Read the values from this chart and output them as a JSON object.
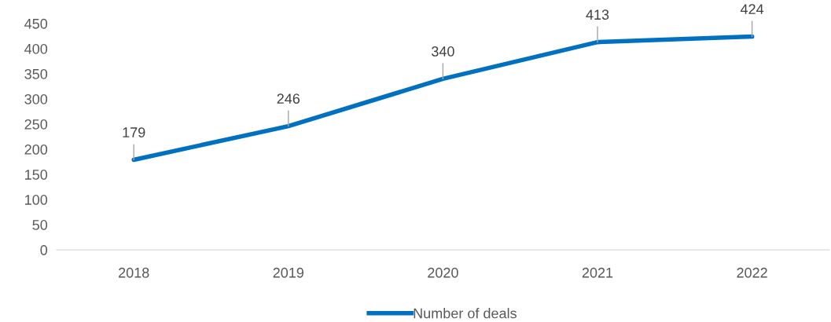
{
  "chart_data": {
    "type": "line",
    "categories": [
      "2018",
      "2019",
      "2020",
      "2021",
      "2022"
    ],
    "series": [
      {
        "name": "Number of deals",
        "color": "#0070c0",
        "values": [
          179,
          246,
          340,
          413,
          424
        ]
      }
    ],
    "ylim": [
      0,
      450
    ],
    "yticks": [
      0,
      50,
      100,
      150,
      200,
      250,
      300,
      350,
      400,
      450
    ],
    "data_labels": true,
    "legend": "bottom",
    "grid": false,
    "marker": "none",
    "line_style": "solid"
  }
}
